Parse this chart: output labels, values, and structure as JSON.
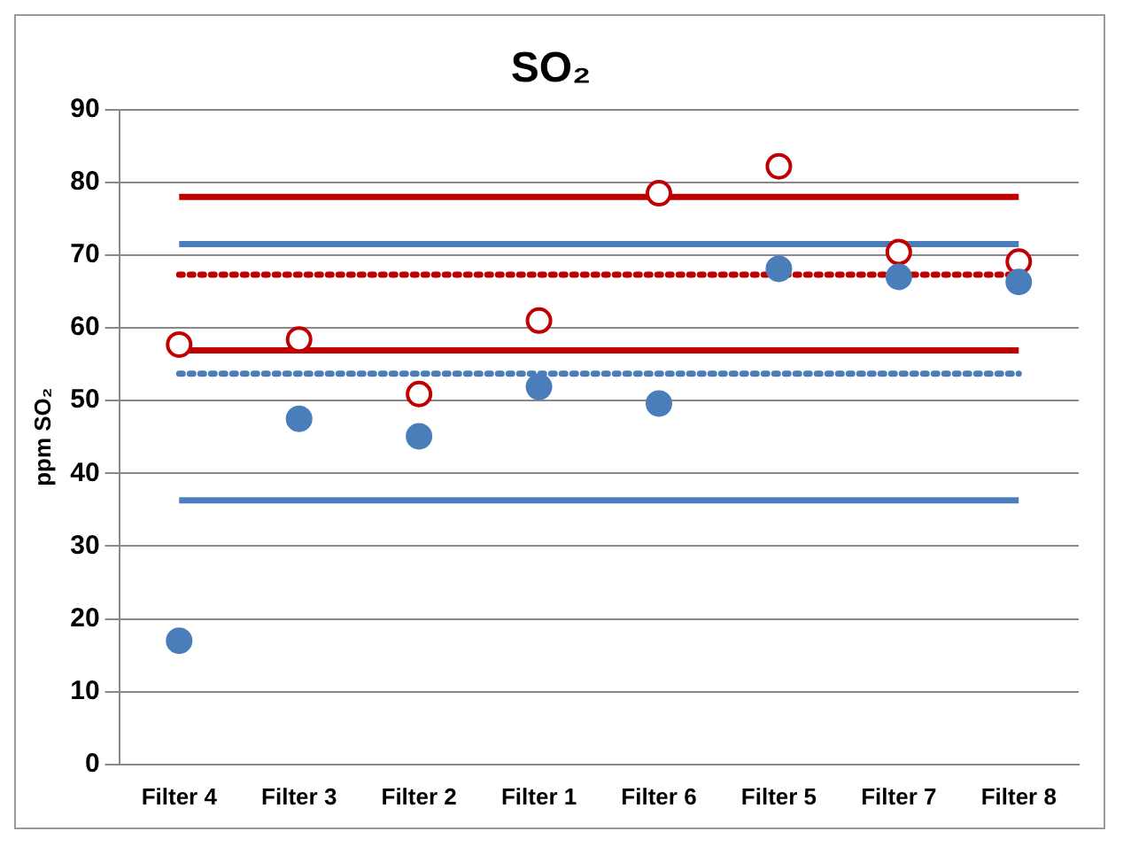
{
  "chart_data": {
    "type": "scatter",
    "title": "SO₂",
    "ylabel": "ppm SO₂",
    "categories": [
      "Filter 4",
      "Filter 3",
      "Filter 2",
      "Filter 1",
      "Filter 6",
      "Filter 5",
      "Filter 7",
      "Filter 8"
    ],
    "series": [
      {
        "type": "line",
        "color": "#c00000",
        "line_style": "solid",
        "marker": "none",
        "values": [
          78,
          78,
          78,
          78,
          78,
          78,
          78,
          78
        ]
      },
      {
        "type": "line",
        "color": "#c00000",
        "line_style": "solid",
        "marker": "none",
        "values": [
          56.9,
          56.9,
          56.9,
          56.9,
          56.9,
          56.9,
          56.9,
          56.9
        ]
      },
      {
        "type": "line",
        "color": "#c00000",
        "line_style": "dotted",
        "marker": "none",
        "values": [
          67.3,
          67.3,
          67.3,
          67.3,
          67.3,
          67.3,
          67.3,
          67.3
        ]
      },
      {
        "type": "line",
        "color": "#4a7ebb",
        "line_style": "solid",
        "marker": "none",
        "values": [
          71.5,
          71.5,
          71.5,
          71.5,
          71.5,
          71.5,
          71.5,
          71.5
        ]
      },
      {
        "type": "line",
        "color": "#4a7ebb",
        "line_style": "solid",
        "marker": "none",
        "values": [
          36.3,
          36.3,
          36.3,
          36.3,
          36.3,
          36.3,
          36.3,
          36.3
        ]
      },
      {
        "type": "line",
        "color": "#4a7ebb",
        "line_style": "dotted",
        "marker": "none",
        "values": [
          53.7,
          53.7,
          53.7,
          53.7,
          53.7,
          53.7,
          53.7,
          53.7
        ]
      },
      {
        "color": "#4a7ebb",
        "marker": "circle",
        "values": [
          17,
          47.5,
          45.1,
          51.9,
          49.6,
          68.1,
          67,
          66.3
        ]
      },
      {
        "color": "#c00000",
        "marker": "circle",
        "values": [
          57.7,
          58.4,
          50.9,
          61,
          78.5,
          82.2,
          70.4,
          69.1
        ]
      }
    ],
    "ylim": [
      0,
      90
    ],
    "yticks": [
      0,
      10,
      20,
      30,
      40,
      50,
      60,
      70,
      80,
      90
    ],
    "grid": "y",
    "legend": false
  }
}
